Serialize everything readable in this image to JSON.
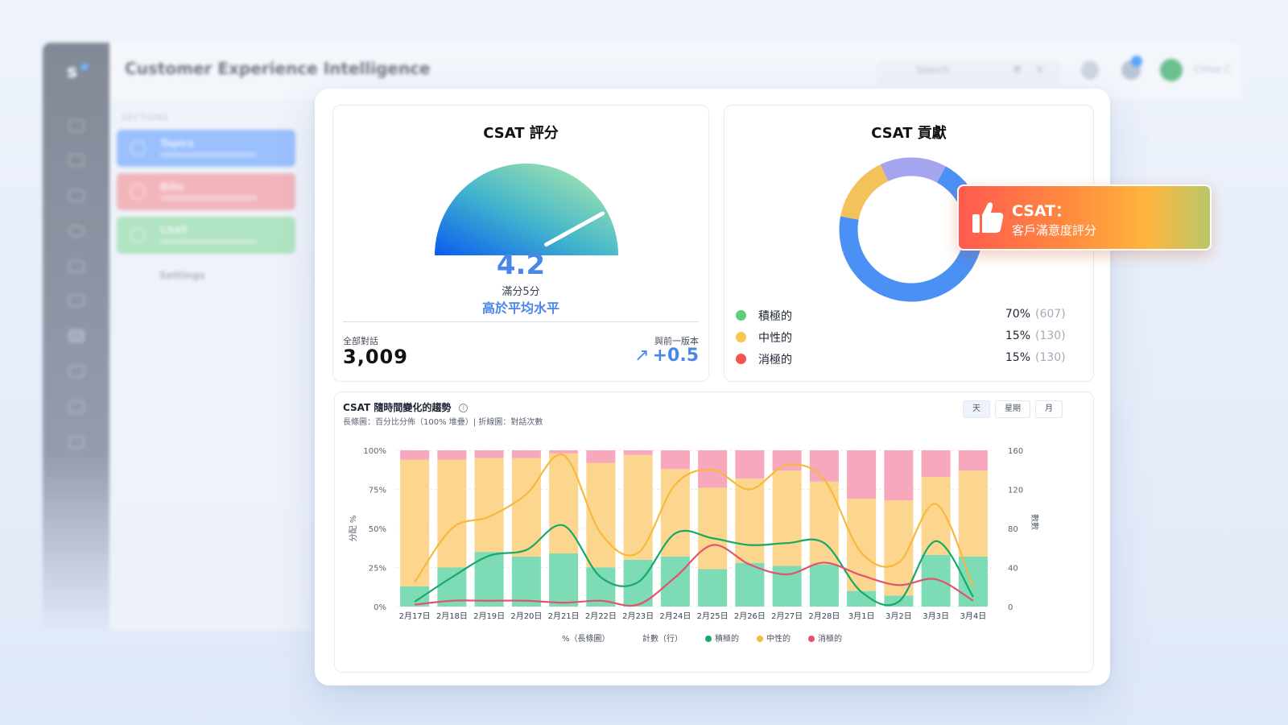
{
  "background_app": {
    "logo": "s",
    "title": "Customer Experience Intelligence",
    "search_placeholder": "Search",
    "search_shortcut": "⌘ K",
    "sections_label": "SECTIONS",
    "nav_cards": [
      {
        "title": "Topics",
        "color": "#7fb0ff"
      },
      {
        "title": "Bills",
        "color": "#f6a2a8"
      },
      {
        "title": "CSAT",
        "color": "#9fe0b0"
      }
    ],
    "nav_item": "Settings",
    "username": "Chloe C"
  },
  "csat_score": {
    "title": "CSAT 評分",
    "value": "4.2",
    "value_numeric": 4.2,
    "max": 5,
    "subtitle": "滿分5分",
    "status": "高於平均水平",
    "total_label": "全部對話",
    "total_value": "3,009",
    "change_label": "與前一版本",
    "change_value": "+0.5"
  },
  "csat_contribution": {
    "title": "CSAT 貢獻",
    "items": [
      {
        "name": "積極的",
        "pct": "70%",
        "count": "(607)",
        "color": "#5ccf7a",
        "ring_color": "#4a90f5",
        "value": 70
      },
      {
        "name": "中性的",
        "pct": "15%",
        "count": "(130)",
        "color": "#f9c74f",
        "ring_color": "#f3c25a",
        "value": 15
      },
      {
        "name": "消極的",
        "pct": "15%",
        "count": "(130)",
        "color": "#f2544f",
        "ring_color": "#a4a4ef",
        "value": 15
      }
    ]
  },
  "tooltip": {
    "title": "CSAT：",
    "subtitle": "客戶滿意度評分"
  },
  "trend": {
    "title": "CSAT 隨時間變化的趨勢",
    "subtitle": "長條圖：百分比分佈（100% 堆疊）| 折線圖：對話次數",
    "period_buttons": [
      "天",
      "星期",
      "月"
    ],
    "active_period": "天",
    "legend": {
      "bar": "%（長條圖）",
      "line": "計數（行）",
      "positive": "積極的",
      "neutral": "中性的",
      "negative": "消極的"
    },
    "left_axis_label": "分配 %",
    "right_axis_label": "數數"
  },
  "chart_data": {
    "type": "bar",
    "categories": [
      "2月17日",
      "2月18日",
      "2月19日",
      "2月20日",
      "2月21日",
      "2月22日",
      "2月23日",
      "2月24日",
      "2月25日",
      "2月26日",
      "2月27日",
      "2月28日",
      "3月1日",
      "3月2日",
      "3月3日",
      "3月4日"
    ],
    "y_left_ticks": [
      "100%",
      "75%",
      "50%",
      "25%",
      "0%"
    ],
    "y_right_ticks": [
      "160",
      "120",
      "80",
      "40",
      "0"
    ],
    "ylim_left": [
      0,
      100
    ],
    "ylim_right": [
      0,
      160
    ],
    "series": [
      {
        "name": "積極的",
        "kind": "bar",
        "color": "#7ddbb5",
        "values": [
          13,
          25,
          35,
          32,
          34,
          25,
          30,
          32,
          24,
          28,
          26,
          27,
          10,
          7,
          33,
          32
        ]
      },
      {
        "name": "中性的",
        "kind": "bar",
        "color": "#fcd68e",
        "values": [
          81,
          69,
          60,
          63,
          64,
          67,
          67,
          56,
          52,
          54,
          61,
          53,
          59,
          61,
          50,
          55
        ]
      },
      {
        "name": "消極的",
        "kind": "bar",
        "color": "#f7a8bd",
        "values": [
          6,
          6,
          5,
          5,
          2,
          8,
          3,
          12,
          24,
          18,
          13,
          20,
          31,
          32,
          17,
          13
        ]
      },
      {
        "name": "中性的",
        "kind": "line",
        "color": "#f6b93b",
        "values": [
          25,
          80,
          92,
          115,
          155,
          75,
          55,
          125,
          140,
          120,
          145,
          130,
          55,
          45,
          105,
          20
        ]
      },
      {
        "name": "積極的",
        "kind": "line",
        "color": "#17a86a",
        "values": [
          5,
          30,
          52,
          58,
          83,
          30,
          25,
          75,
          70,
          63,
          65,
          65,
          15,
          5,
          67,
          10
        ]
      },
      {
        "name": "消極的",
        "kind": "line",
        "color": "#e2546e",
        "values": [
          2,
          6,
          6,
          6,
          4,
          6,
          2,
          30,
          63,
          43,
          33,
          45,
          32,
          22,
          28,
          6
        ]
      }
    ]
  }
}
